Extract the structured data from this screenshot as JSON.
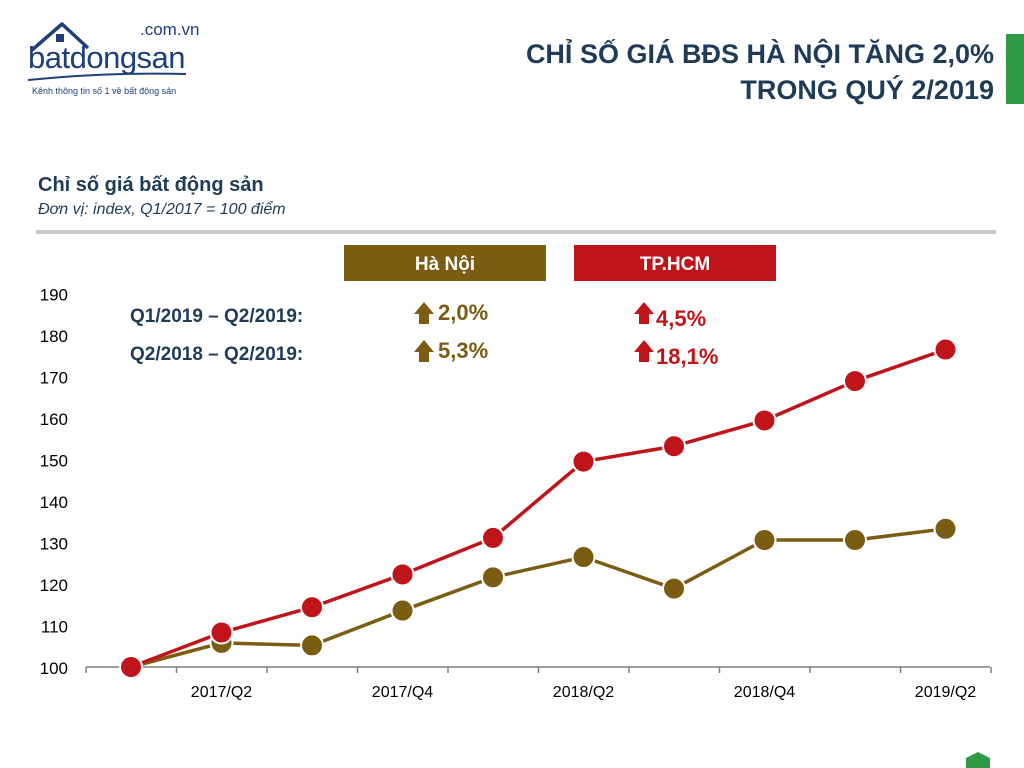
{
  "logo": {
    "domain": ".com.vn",
    "wordmark": "batdongsan",
    "tagline": "Kênh thông tin số 1 về bất động sản"
  },
  "header": {
    "title_line1": "CHỈ SỐ GIÁ BĐS HÀ NỘI TĂNG 2,0%",
    "title_line2": "TRONG QUÝ 2/2019"
  },
  "chart_header": {
    "subtitle": "Chỉ số giá bất động sản",
    "unit": "Đơn vị: index, Q1/2017 = 100 điểm"
  },
  "colors": {
    "hanoi": "#7a5c12",
    "hcm": "#c0141b",
    "title": "#1f3b57",
    "accent_green": "#2f9a46"
  },
  "legend_boxes": [
    {
      "label": "Hà Nội"
    },
    {
      "label": "TP.HCM"
    }
  ],
  "change_table": {
    "rows": [
      {
        "period": "Q1/2019 – Q2/2019:",
        "hanoi": "2,0%",
        "hcm": "4,5%"
      },
      {
        "period": "Q2/2018 – Q2/2019:",
        "hanoi": "5,3%",
        "hcm": "18,1%"
      }
    ],
    "arrow_icon": "up-arrow-icon"
  },
  "chart_data": {
    "type": "line",
    "x": [
      "2017/Q1",
      "2017/Q2",
      "2017/Q3",
      "2017/Q4",
      "2018/Q1",
      "2018/Q2",
      "2018/Q3",
      "2018/Q4",
      "2019/Q1",
      "2019/Q2"
    ],
    "x_tick_labels": [
      "",
      "2017/Q2",
      "",
      "2017/Q4",
      "",
      "2018/Q2",
      "",
      "2018/Q4",
      "",
      "2019/Q2"
    ],
    "series": [
      {
        "name": "Hà Nội",
        "color": "#7a5c12",
        "values": [
          100,
          105.8,
          105.2,
          113.6,
          121.6,
          126.5,
          118.9,
          130.6,
          130.6,
          133.3
        ]
      },
      {
        "name": "TP.HCM",
        "color": "#c0141b",
        "values": [
          100,
          108.3,
          114.4,
          122.3,
          131.1,
          149.5,
          153.2,
          159.4,
          168.9,
          176.5
        ]
      }
    ],
    "y_ticks": [
      100,
      110,
      120,
      130,
      140,
      150,
      160,
      170,
      180,
      190
    ],
    "ylim": [
      100,
      190
    ],
    "title": "Chỉ số giá bất động sản",
    "xlabel": "",
    "ylabel": "",
    "grid": false,
    "legend_placement": "top-center"
  }
}
